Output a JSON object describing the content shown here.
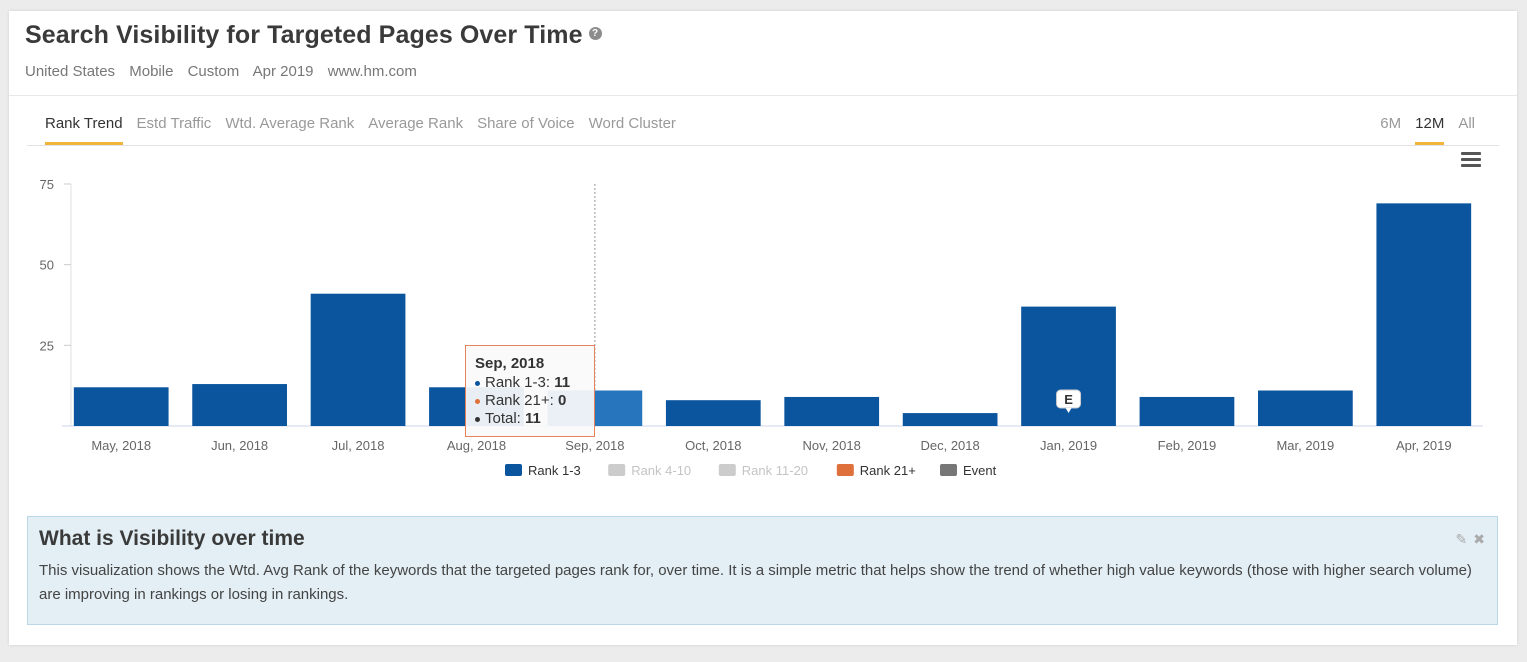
{
  "header": {
    "title": "Search Visibility for Targeted Pages Over Time",
    "help_glyph": "?",
    "filters": [
      "United States",
      "Mobile",
      "Custom",
      "Apr 2019",
      "www.hm.com"
    ]
  },
  "tabs": [
    {
      "label": "Rank Trend",
      "active": true
    },
    {
      "label": "Estd Traffic",
      "active": false
    },
    {
      "label": "Wtd. Average Rank",
      "active": false
    },
    {
      "label": "Average Rank",
      "active": false
    },
    {
      "label": "Share of Voice",
      "active": false
    },
    {
      "label": "Word Cluster",
      "active": false
    }
  ],
  "ranges": [
    {
      "label": "6M",
      "active": false
    },
    {
      "label": "12M",
      "active": true
    },
    {
      "label": "All",
      "active": false
    }
  ],
  "chart_data": {
    "type": "bar",
    "categories": [
      "May, 2018",
      "Jun, 2018",
      "Jul, 2018",
      "Aug, 2018",
      "Sep, 2018",
      "Oct, 2018",
      "Nov, 2018",
      "Dec, 2018",
      "Jan, 2019",
      "Feb, 2019",
      "Mar, 2019",
      "Apr, 2019"
    ],
    "series": [
      {
        "name": "Rank 1-3",
        "values": [
          12,
          13,
          41,
          12,
          11,
          8,
          9,
          4,
          37,
          9,
          11,
          69
        ]
      }
    ],
    "ylim": [
      0,
      75
    ],
    "yticks": [
      25,
      50,
      75
    ],
    "legend": [
      {
        "name": "Rank 1-3",
        "color": "#0b559e",
        "muted": false
      },
      {
        "name": "Rank 4-10",
        "color": "#cccccc",
        "muted": true
      },
      {
        "name": "Rank 11-20",
        "color": "#cccccc",
        "muted": true
      },
      {
        "name": "Rank 21+",
        "color": "#e0703b",
        "muted": false
      },
      {
        "name": "Event",
        "color": "#777777",
        "muted": false
      }
    ],
    "legend_position": "bottom-center",
    "bar_color": "#0b559e",
    "highlight_color": "#2675bd",
    "highlight_index": 4,
    "event": {
      "category_index": 8,
      "label": "E"
    },
    "grid": false
  },
  "tooltip": {
    "title": "Sep, 2018",
    "rows": [
      {
        "label": "Rank 1-3: ",
        "value": "11",
        "color": "#0b559e"
      },
      {
        "label": "Rank 21+: ",
        "value": "0",
        "color": "#e0703b"
      },
      {
        "label": "Total: ",
        "value": "11",
        "color": "#333333"
      }
    ]
  },
  "info": {
    "title": "What is Visibility over time",
    "text": "This visualization shows the Wtd. Avg Rank of the keywords that the targeted pages rank for, over time. It is a simple metric that helps show the trend of whether high value keywords (those with higher search volume) are improving in rankings or losing in rankings.",
    "edit_glyph": "✎",
    "close_glyph": "✖"
  }
}
